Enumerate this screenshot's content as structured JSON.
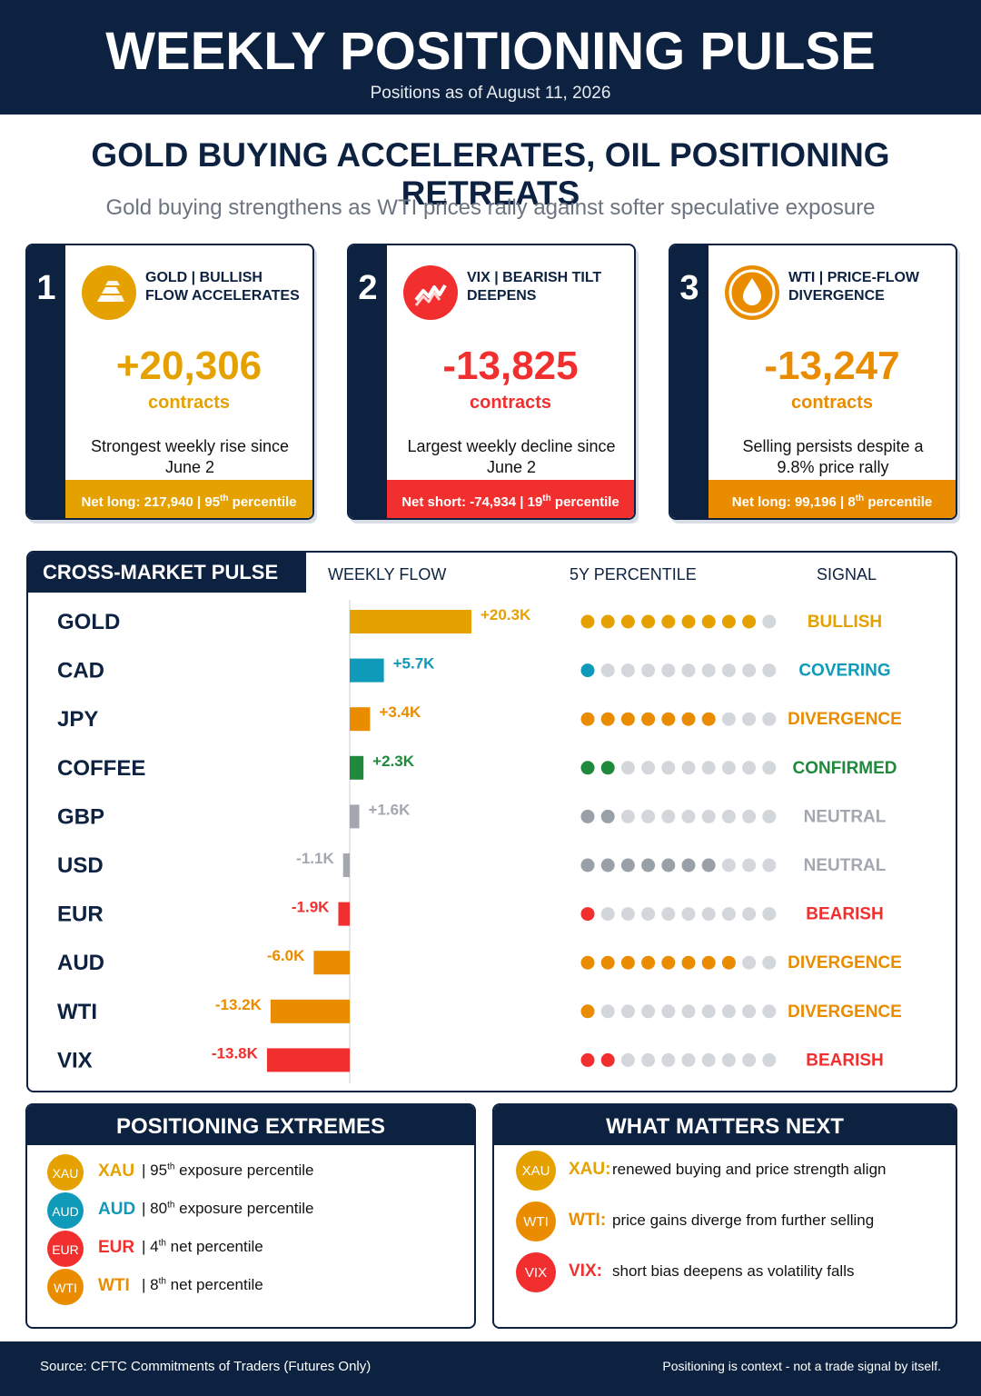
{
  "header": {
    "title": "WEEKLY POSITIONING PULSE",
    "date": "Positions as of August 11, 2026"
  },
  "headline": "GOLD BUYING ACCELERATES, OIL POSITIONING RETREATS",
  "subhead": "Gold buying strengthens as WTI prices rally against softer speculative exposure",
  "cards": [
    {
      "num": "1",
      "icon": "gold-bars-icon",
      "title": "GOLD | BULLISH FLOW ACCELERATES",
      "value": "+20,306",
      "unit": "contracts",
      "desc": "Strongest weekly rise since June 2",
      "foot_pre": "Net long: 217,940 | 95",
      "foot_sup": "th",
      "foot_post": " percentile",
      "color": "#e5a100"
    },
    {
      "num": "2",
      "icon": "volatility-zigzag-icon",
      "title": "VIX | BEARISH TILT DEEPENS",
      "value": "-13,825",
      "unit": "contracts",
      "desc": "Largest weekly decline since June 2",
      "foot_pre": "Net short: -74,934 | 19",
      "foot_sup": "th",
      "foot_post": " percentile",
      "color": "#f22f2f"
    },
    {
      "num": "3",
      "icon": "oil-drop-icon",
      "title": "WTI | PRICE-FLOW DIVERGENCE",
      "value": "-13,247",
      "unit": "contracts",
      "desc": "Selling persists despite a 9.8% price rally",
      "foot_pre": "Net long: 99,196 | 8",
      "foot_sup": "th",
      "foot_post": " percentile",
      "color": "#ea8c00"
    }
  ],
  "pulse": {
    "title": "CROSS-MARKET PULSE",
    "col_flow": "WEEKLY FLOW",
    "col_pct": "5Y PERCENTILE",
    "col_signal": "SIGNAL"
  },
  "chart_data": {
    "type": "bar",
    "title": "CROSS-MARKET PULSE",
    "categories": [
      "GOLD",
      "CAD",
      "JPY",
      "COFFEE",
      "GBP",
      "USD",
      "EUR",
      "AUD",
      "WTI",
      "VIX"
    ],
    "values": [
      20.3,
      5.7,
      3.4,
      2.3,
      1.6,
      -1.1,
      -1.9,
      -6.0,
      -13.2,
      -13.8
    ],
    "value_labels": [
      "+20.3K",
      "+5.7K",
      "+3.4K",
      "+2.3K",
      "+1.6K",
      "-1.1K",
      "-1.9K",
      "-6.0K",
      "-13.2K",
      "-13.8K"
    ],
    "percentile_dots_filled": [
      9,
      1,
      7,
      2,
      2,
      7,
      1,
      8,
      1,
      2
    ],
    "percentile_dots_total": 10,
    "signals": [
      "BULLISH",
      "COVERING",
      "DIVERGENCE",
      "CONFIRMED",
      "NEUTRAL",
      "NEUTRAL",
      "BEARISH",
      "DIVERGENCE",
      "DIVERGENCE",
      "BEARISH"
    ],
    "colors": [
      "#e5a100",
      "#0e9ab8",
      "#ea8c00",
      "#1f8a3b",
      "#a3a8b0",
      "#a3a8b0",
      "#f22f2f",
      "#ea8c00",
      "#ea8c00",
      "#f22f2f"
    ],
    "dot_colors": [
      "#e5a100",
      "#0e9ab8",
      "#ea8c00",
      "#1f8a3b",
      "#9aa0a8",
      "#9aa0a8",
      "#f22f2f",
      "#ea8c00",
      "#ea8c00",
      "#f22f2f"
    ],
    "xlabel": "WEEKLY FLOW",
    "grid": false
  },
  "extremes": {
    "title": "POSITIONING EXTREMES",
    "items": [
      {
        "code": "XAU",
        "pct": "95",
        "sup": "th",
        "text": " exposure percentile",
        "color": "#e5a100"
      },
      {
        "code": "AUD",
        "pct": "80",
        "sup": "th",
        "text": " exposure percentile",
        "color": "#0e9ab8"
      },
      {
        "code": "EUR",
        "pct": "4",
        "sup": "th",
        "text": " net percentile",
        "color": "#f22f2f"
      },
      {
        "code": "WTI",
        "pct": "8",
        "sup": "th",
        "text": " net percentile",
        "color": "#ea8c00"
      }
    ]
  },
  "next": {
    "title": "WHAT MATTERS NEXT",
    "items": [
      {
        "code": "XAU",
        "label": "XAU:",
        "text": "renewed buying and price strength align",
        "color": "#e5a100"
      },
      {
        "code": "WTI",
        "label": "WTI:",
        "text": "price gains diverge from further selling",
        "color": "#ea8c00"
      },
      {
        "code": "VIX",
        "label": "VIX:",
        "text": "short bias deepens as volatility falls",
        "color": "#f22f2f"
      }
    ]
  },
  "footer": {
    "source": "Source: CFTC Commitments of Traders (Futures Only)",
    "note": "Positioning is context - not a trade signal by itself."
  }
}
